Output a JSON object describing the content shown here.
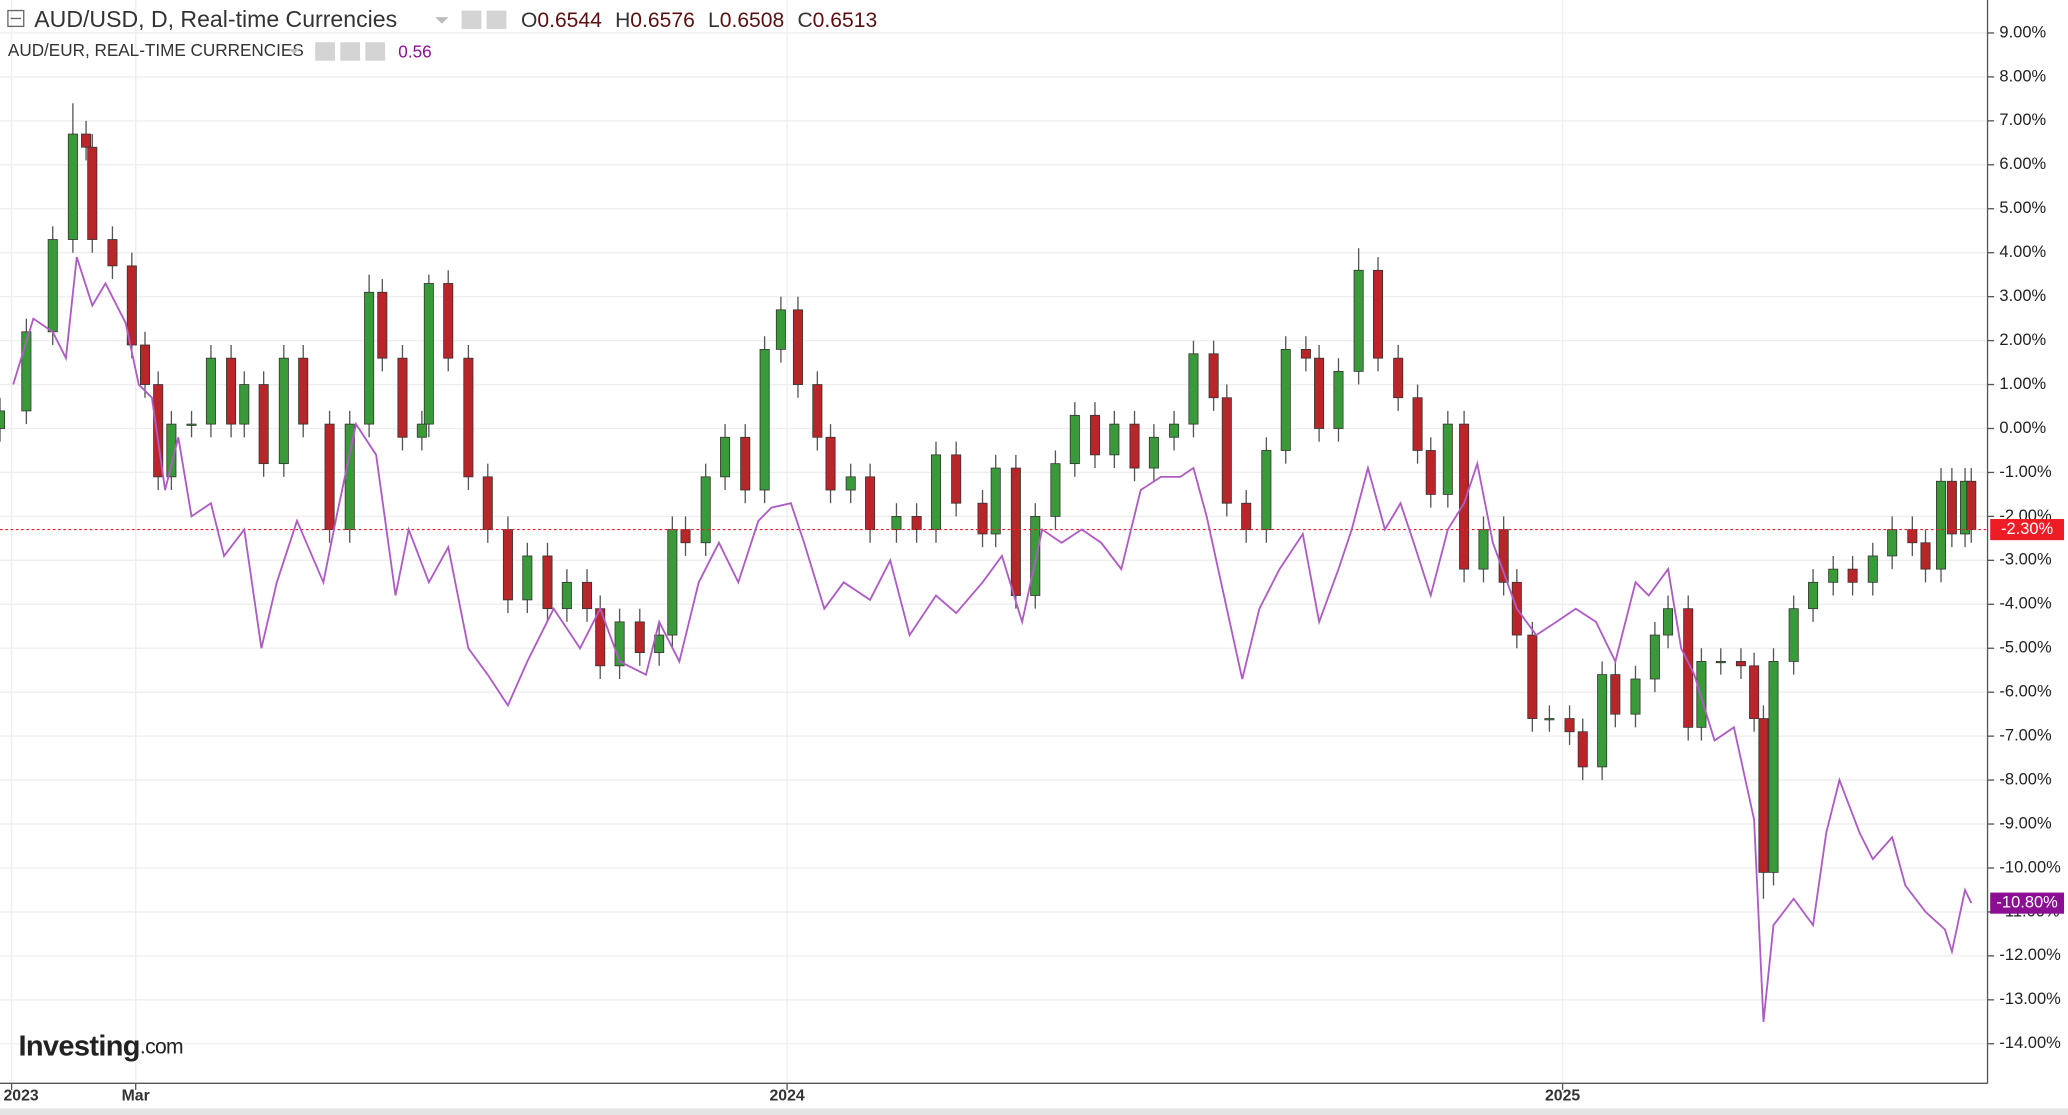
{
  "header": {
    "title": "AUD/USD, D, Real-time Currencies",
    "ohlc": [
      {
        "label": "O",
        "value": 0.6544
      },
      {
        "label": "H",
        "value": 0.6576
      },
      {
        "label": "L",
        "value": 0.6508
      },
      {
        "label": "C",
        "value": 0.6513
      }
    ],
    "compare_title": "AUD/EUR, REAL-TIME CURRENCIES",
    "compare_value": 0.56,
    "logo": "Investing",
    "logo_suffix": ".com"
  },
  "chart_data": {
    "type": "candlestick",
    "xlim": [
      2022.985,
      2025.548
    ],
    "ylim": [
      -14.87,
      9.75
    ],
    "xticks": [
      {
        "value": 2023,
        "label": "2023"
      },
      {
        "value": 2023.16,
        "label": "Mar"
      },
      {
        "value": 2024,
        "label": "2024"
      },
      {
        "value": 2025,
        "label": "2025"
      }
    ],
    "yticks": [
      {
        "value": 9,
        "label": "9.00%"
      },
      {
        "value": 8,
        "label": "8.00%"
      },
      {
        "value": 7,
        "label": "7.00%"
      },
      {
        "value": 6,
        "label": "6.00%"
      },
      {
        "value": 5,
        "label": "5.00%"
      },
      {
        "value": 4,
        "label": "4.00%"
      },
      {
        "value": 3,
        "label": "3.00%"
      },
      {
        "value": 2,
        "label": "2.00%"
      },
      {
        "value": 1,
        "label": "1.00%"
      },
      {
        "value": 0,
        "label": "0.00%"
      },
      {
        "value": -1,
        "label": "-1.00%"
      },
      {
        "value": -2,
        "label": "-2.00%"
      },
      {
        "value": -3,
        "label": "-3.00%"
      },
      {
        "value": -4,
        "label": "-4.00%"
      },
      {
        "value": -5,
        "label": "-5.00%"
      },
      {
        "value": -6,
        "label": "-6.00%"
      },
      {
        "value": -7,
        "label": "-7.00%"
      },
      {
        "value": -8,
        "label": "-8.00%"
      },
      {
        "value": -9,
        "label": "-9.00%"
      },
      {
        "value": -10,
        "label": "-10.00%"
      },
      {
        "value": -11,
        "label": "-11.00%"
      },
      {
        "value": -12,
        "label": "-12.00%"
      },
      {
        "value": -13,
        "label": "-13.00%"
      },
      {
        "value": -14,
        "label": "-14.00%"
      }
    ],
    "grid": true,
    "series": [
      {
        "name": "AUD/USD",
        "type": "candlestick",
        "up_color": "#3a9a3a",
        "down_color": "#b8262a",
        "last_color": "#ee1c25",
        "last_label": "-2.30%",
        "x": [
          2022.985,
          2023.019,
          2023.053,
          2023.079,
          2023.096,
          2023.104,
          2023.13,
          2023.155,
          2023.172,
          2023.189,
          2023.206,
          2023.232,
          2023.257,
          2023.283,
          2023.3,
          2023.325,
          2023.351,
          2023.376,
          2023.41,
          2023.436,
          2023.461,
          2023.478,
          2023.504,
          2023.529,
          2023.538,
          2023.563,
          2023.589,
          2023.614,
          2023.64,
          2023.665,
          2023.691,
          2023.716,
          2023.742,
          2023.759,
          2023.784,
          2023.81,
          2023.835,
          2023.852,
          2023.869,
          2023.895,
          2023.92,
          2023.946,
          2023.971,
          2023.992,
          2024.014,
          2024.039,
          2024.056,
          2024.082,
          2024.107,
          2024.141,
          2024.167,
          2024.192,
          2024.218,
          2024.252,
          2024.269,
          2024.295,
          2024.32,
          2024.346,
          2024.371,
          2024.397,
          2024.422,
          2024.448,
          2024.473,
          2024.499,
          2024.524,
          2024.55,
          2024.567,
          2024.592,
          2024.618,
          2024.643,
          2024.669,
          2024.686,
          2024.711,
          2024.737,
          2024.762,
          2024.788,
          2024.813,
          2024.83,
          2024.852,
          2024.873,
          2024.898,
          2024.924,
          2024.941,
          2024.961,
          2024.983,
          2025.009,
          2025.026,
          2025.051,
          2025.068,
          2025.094,
          2025.119,
          2025.136,
          2025.162,
          2025.179,
          2025.204,
          2025.23,
          2025.247,
          2025.259,
          2025.272,
          2025.298,
          2025.323,
          2025.349,
          2025.374,
          2025.4,
          2025.425,
          2025.451,
          2025.468,
          2025.488,
          2025.502,
          2025.519,
          2025.527
        ],
        "open": [
          0.0,
          0.4,
          2.2,
          4.3,
          6.7,
          6.4,
          4.3,
          3.7,
          1.9,
          1.0,
          -1.1,
          0.1,
          0.1,
          1.6,
          0.1,
          1.0,
          -0.8,
          1.6,
          0.1,
          -2.3,
          0.1,
          3.1,
          1.6,
          -0.2,
          0.1,
          3.3,
          1.6,
          -1.1,
          -2.3,
          -3.9,
          -2.9,
          -4.1,
          -3.5,
          -4.1,
          -5.4,
          -4.4,
          -5.1,
          -4.7,
          -2.3,
          -2.6,
          -1.1,
          -0.2,
          -1.4,
          1.8,
          2.7,
          1.0,
          -0.2,
          -1.4,
          -1.1,
          -2.3,
          -2.0,
          -2.3,
          -0.6,
          -1.7,
          -2.4,
          -0.9,
          -3.8,
          -2.0,
          -0.8,
          0.3,
          -0.6,
          0.1,
          -0.9,
          -0.2,
          0.1,
          1.7,
          0.7,
          -1.7,
          -2.3,
          -0.5,
          1.8,
          1.6,
          0.0,
          1.3,
          3.6,
          1.6,
          0.7,
          -0.5,
          -1.5,
          0.1,
          -3.2,
          -2.3,
          -3.5,
          -4.7,
          -6.6,
          -6.6,
          -6.9,
          -7.7,
          -5.6,
          -6.5,
          -5.7,
          -4.7,
          -4.1,
          -6.8,
          -5.3,
          -5.3,
          -5.4,
          -6.6,
          -10.1,
          -5.3,
          -4.1,
          -3.5,
          -3.2,
          -3.5,
          -2.9,
          -2.3,
          -2.6,
          -3.2,
          -1.2,
          -2.4,
          -1.2
        ],
        "high": [
          0.7,
          2.5,
          4.6,
          7.4,
          7.0,
          6.7,
          4.6,
          4.0,
          2.2,
          1.3,
          0.4,
          0.4,
          1.9,
          1.9,
          1.3,
          1.3,
          1.9,
          1.9,
          0.4,
          0.4,
          3.5,
          3.4,
          1.9,
          0.4,
          3.5,
          3.6,
          1.9,
          -0.8,
          -2.0,
          -2.6,
          -2.6,
          -3.2,
          -3.2,
          -3.8,
          -4.1,
          -4.1,
          -4.4,
          -2.0,
          -2.0,
          -0.8,
          0.1,
          0.1,
          2.1,
          3.0,
          3.0,
          1.3,
          0.1,
          -0.8,
          -0.8,
          -1.7,
          -1.7,
          -0.3,
          -0.3,
          -1.4,
          -0.6,
          -0.6,
          -1.7,
          -0.5,
          0.6,
          0.6,
          0.4,
          0.4,
          0.1,
          0.4,
          2.0,
          2.0,
          1.0,
          -1.4,
          -0.2,
          2.1,
          2.1,
          1.9,
          1.6,
          4.1,
          3.9,
          1.9,
          1.0,
          -0.2,
          0.4,
          0.4,
          -2.0,
          -2.0,
          -3.2,
          -4.4,
          -6.3,
          -6.3,
          -6.6,
          -5.3,
          -5.3,
          -5.4,
          -4.4,
          -3.8,
          -3.8,
          -5.0,
          -5.0,
          -5.0,
          -5.1,
          -6.3,
          -5.0,
          -3.8,
          -3.2,
          -2.9,
          -2.9,
          -2.6,
          -2.0,
          -2.0,
          -2.3,
          -0.9,
          -0.9,
          -0.9,
          -0.9
        ],
        "low": [
          -0.3,
          0.1,
          1.9,
          4.0,
          6.1,
          4.0,
          3.4,
          1.6,
          0.7,
          -1.4,
          -1.4,
          -0.2,
          -0.2,
          -0.2,
          -0.2,
          -1.1,
          -1.1,
          -0.2,
          -2.6,
          -2.6,
          -0.2,
          1.3,
          -0.5,
          -0.5,
          -0.2,
          1.3,
          -1.4,
          -2.6,
          -4.2,
          -4.2,
          -4.4,
          -4.4,
          -4.4,
          -5.7,
          -5.7,
          -5.4,
          -5.4,
          -5.0,
          -2.9,
          -2.9,
          -1.4,
          -1.7,
          -1.7,
          1.5,
          0.7,
          -0.5,
          -1.7,
          -1.7,
          -2.6,
          -2.6,
          -2.6,
          -2.6,
          -2.0,
          -2.7,
          -2.7,
          -4.1,
          -4.1,
          -2.3,
          -1.1,
          -0.9,
          -0.9,
          -1.2,
          -1.2,
          -0.5,
          -0.2,
          0.4,
          -2.0,
          -2.6,
          -2.6,
          -0.8,
          1.3,
          -0.3,
          -0.3,
          1.0,
          1.3,
          0.4,
          -0.8,
          -1.8,
          -1.8,
          -3.5,
          -3.5,
          -3.8,
          -5.0,
          -6.9,
          -6.9,
          -7.2,
          -8.0,
          -8.0,
          -6.8,
          -6.8,
          -6.0,
          -5.0,
          -7.1,
          -7.1,
          -5.6,
          -5.7,
          -6.9,
          -10.7,
          -10.4,
          -5.6,
          -4.4,
          -3.8,
          -3.8,
          -3.8,
          -3.2,
          -2.9,
          -3.5,
          -3.5,
          -2.7,
          -2.7,
          -2.6
        ],
        "close": [
          0.4,
          2.2,
          4.3,
          6.7,
          6.4,
          4.3,
          3.7,
          1.9,
          1.0,
          -1.1,
          0.1,
          0.1,
          1.6,
          0.1,
          1.0,
          -0.8,
          1.6,
          0.1,
          -2.3,
          0.1,
          3.1,
          1.6,
          -0.2,
          0.1,
          3.3,
          1.6,
          -1.1,
          -2.3,
          -3.9,
          -2.9,
          -4.1,
          -3.5,
          -4.1,
          -5.4,
          -4.4,
          -5.1,
          -4.7,
          -2.3,
          -2.6,
          -1.1,
          -0.2,
          -1.4,
          1.8,
          2.7,
          1.0,
          -0.2,
          -1.4,
          -1.1,
          -2.3,
          -2.0,
          -2.3,
          -0.6,
          -1.7,
          -2.4,
          -0.9,
          -3.8,
          -2.0,
          -0.8,
          0.3,
          -0.6,
          0.1,
          -0.9,
          -0.2,
          0.1,
          1.7,
          0.7,
          -1.7,
          -2.3,
          -0.5,
          1.8,
          1.6,
          0.0,
          1.3,
          3.6,
          1.6,
          0.7,
          -0.5,
          -1.5,
          0.1,
          -3.2,
          -2.3,
          -3.5,
          -4.7,
          -6.6,
          -6.6,
          -6.9,
          -7.7,
          -5.6,
          -6.5,
          -5.7,
          -4.7,
          -4.1,
          -6.8,
          -5.3,
          -5.3,
          -5.4,
          -6.6,
          -10.1,
          -5.3,
          -4.1,
          -3.5,
          -3.2,
          -3.5,
          -2.9,
          -2.3,
          -2.6,
          -3.2,
          -1.2,
          -2.4,
          -1.2,
          -2.3
        ]
      },
      {
        "name": "AUD/EUR",
        "type": "line",
        "color": "#ae5cc4",
        "last_color": "#8a0f92",
        "last_label": "-10.80%",
        "x": [
          2023.002,
          2023.028,
          2023.053,
          2023.07,
          2023.084,
          2023.104,
          2023.121,
          2023.147,
          2023.164,
          2023.181,
          2023.198,
          2023.215,
          2023.232,
          2023.257,
          2023.274,
          2023.3,
          2023.322,
          2023.342,
          2023.368,
          2023.402,
          2023.419,
          2023.444,
          2023.47,
          2023.495,
          2023.512,
          2023.538,
          2023.563,
          2023.589,
          2023.614,
          2023.64,
          2023.665,
          2023.699,
          2023.733,
          2023.759,
          2023.784,
          2023.818,
          2023.835,
          2023.861,
          2023.886,
          2023.912,
          2023.937,
          2023.963,
          2023.98,
          2024.005,
          2024.022,
          2024.048,
          2024.073,
          2024.107,
          2024.133,
          2024.158,
          2024.192,
          2024.218,
          2024.252,
          2024.277,
          2024.303,
          2024.329,
          2024.354,
          2024.38,
          2024.405,
          2024.431,
          2024.456,
          2024.482,
          2024.507,
          2024.524,
          2024.541,
          2024.567,
          2024.587,
          2024.609,
          2024.635,
          2024.665,
          2024.686,
          2024.711,
          2024.728,
          2024.749,
          2024.771,
          2024.791,
          2024.808,
          2024.83,
          2024.852,
          2024.873,
          2024.89,
          2024.91,
          2024.941,
          2024.966,
          2024.992,
          2025.017,
          2025.043,
          2025.068,
          2025.094,
          2025.111,
          2025.136,
          2025.153,
          2025.17,
          2025.196,
          2025.221,
          2025.247,
          2025.259,
          2025.272,
          2025.298,
          2025.323,
          2025.34,
          2025.357,
          2025.383,
          2025.4,
          2025.425,
          2025.442,
          2025.468,
          2025.493,
          2025.502,
          2025.519,
          2025.527
        ],
        "values": [
          1.0,
          2.5,
          2.2,
          1.6,
          3.9,
          2.8,
          3.3,
          2.4,
          1.0,
          0.7,
          -1.4,
          -0.2,
          -2.0,
          -1.7,
          -2.9,
          -2.3,
          -5.0,
          -3.5,
          -2.1,
          -3.5,
          -2.0,
          0.1,
          -0.6,
          -3.8,
          -2.3,
          -3.5,
          -2.7,
          -5.0,
          -5.6,
          -6.3,
          -5.3,
          -4.1,
          -5.0,
          -4.1,
          -5.3,
          -5.6,
          -4.4,
          -5.3,
          -3.5,
          -2.6,
          -3.5,
          -2.1,
          -1.8,
          -1.7,
          -2.6,
          -4.1,
          -3.5,
          -3.9,
          -3.0,
          -4.7,
          -3.8,
          -4.2,
          -3.5,
          -2.9,
          -4.4,
          -2.3,
          -2.6,
          -2.3,
          -2.6,
          -3.2,
          -1.4,
          -1.1,
          -1.1,
          -0.9,
          -2.0,
          -4.1,
          -5.7,
          -4.1,
          -3.2,
          -2.4,
          -4.4,
          -3.2,
          -2.3,
          -0.9,
          -2.3,
          -1.7,
          -2.6,
          -3.8,
          -2.3,
          -1.7,
          -0.8,
          -2.6,
          -4.1,
          -4.7,
          -4.4,
          -4.1,
          -4.4,
          -5.3,
          -3.5,
          -3.8,
          -3.2,
          -5.0,
          -5.6,
          -7.1,
          -6.8,
          -8.9,
          -13.5,
          -11.3,
          -10.7,
          -11.3,
          -9.2,
          -8.0,
          -9.2,
          -9.8,
          -9.3,
          -10.4,
          -11.0,
          -11.4,
          -11.9,
          -10.5,
          -10.8
        ]
      }
    ]
  }
}
